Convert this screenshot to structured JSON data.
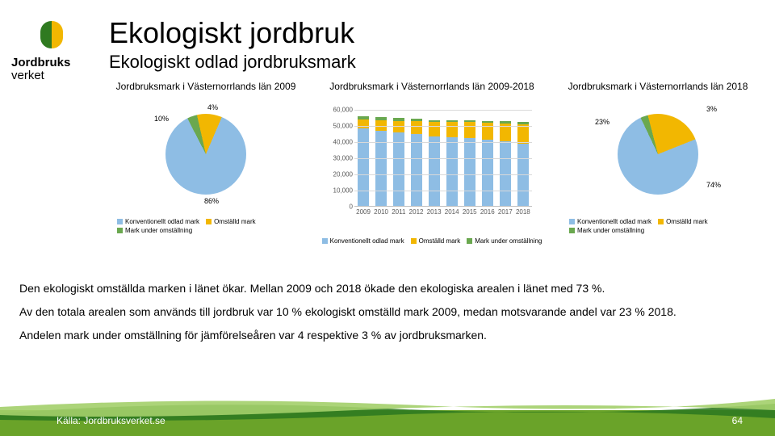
{
  "brand": {
    "line1": "Jordbruks",
    "line2": "verket"
  },
  "title": "Ekologiskt jordbruk",
  "subtitle": "Ekologiskt odlad jordbruksmark",
  "colors": {
    "konv": "#8ebde4",
    "omstalld": "#f2b701",
    "under": "#6aa84f",
    "grid": "#d9d9d9",
    "axis": "#bfbfbf",
    "footer_band": "#6aa329",
    "footer_stripe_dark": "#2f7a20",
    "footer_stripe_light": "#a3cf6a"
  },
  "legend_labels": {
    "konv": "Konventionellt odlad mark",
    "omstalld": "Omställd mark",
    "under": "Mark under omställning"
  },
  "pie2009": {
    "title": "Jordbruksmark i Västernorrlands län 2009",
    "slices": [
      {
        "key": "konv",
        "pct": 86,
        "label": "86%"
      },
      {
        "key": "omstalld",
        "pct": 10,
        "label": "10%"
      },
      {
        "key": "under",
        "pct": 4,
        "label": "4%"
      }
    ]
  },
  "pie2018": {
    "title": "Jordbruksmark i Västernorrlands län 2018",
    "slices": [
      {
        "key": "konv",
        "pct": 74,
        "label": "74%"
      },
      {
        "key": "omstalld",
        "pct": 23,
        "label": "23%"
      },
      {
        "key": "under",
        "pct": 3,
        "label": "3%"
      }
    ]
  },
  "bar": {
    "title": "Jordbruksmark i Västernorrlands län 2009-2018",
    "ylim": [
      0,
      60000
    ],
    "ytick_step": 10000,
    "ytick_labels": [
      "0",
      "10,000",
      "20,000",
      "30,000",
      "40,000",
      "50,000",
      "60,000"
    ],
    "categories": [
      "2009",
      "2010",
      "2011",
      "2012",
      "2013",
      "2014",
      "2015",
      "2016",
      "2017",
      "2018"
    ],
    "series": [
      {
        "key": "konv",
        "values": [
          47800,
          46500,
          45500,
          44500,
          43200,
          42500,
          42000,
          40800,
          39800,
          38500
        ]
      },
      {
        "key": "omstalld",
        "values": [
          5600,
          6300,
          7200,
          8100,
          8800,
          9300,
          9900,
          10600,
          11300,
          12000
        ]
      },
      {
        "key": "under",
        "values": [
          2200,
          2000,
          1600,
          1300,
          1150,
          1100,
          1200,
          1300,
          1400,
          1560
        ]
      }
    ]
  },
  "body": {
    "p1": "Den ekologiskt omställda marken i länet ökar. Mellan 2009 och 2018 ökade den ekologiska arealen i länet med 73 %.",
    "p2": "Av den totala arealen som används till jordbruk var 10 % ekologiskt omställd mark 2009, medan motsvarande andel var 23 % 2018.",
    "p3": "Andelen mark under omställning för jämförelseåren var 4 respektive 3 % av jordbruksmarken."
  },
  "footer": {
    "source": "Källa: Jordbruksverket.se",
    "page": "64"
  }
}
